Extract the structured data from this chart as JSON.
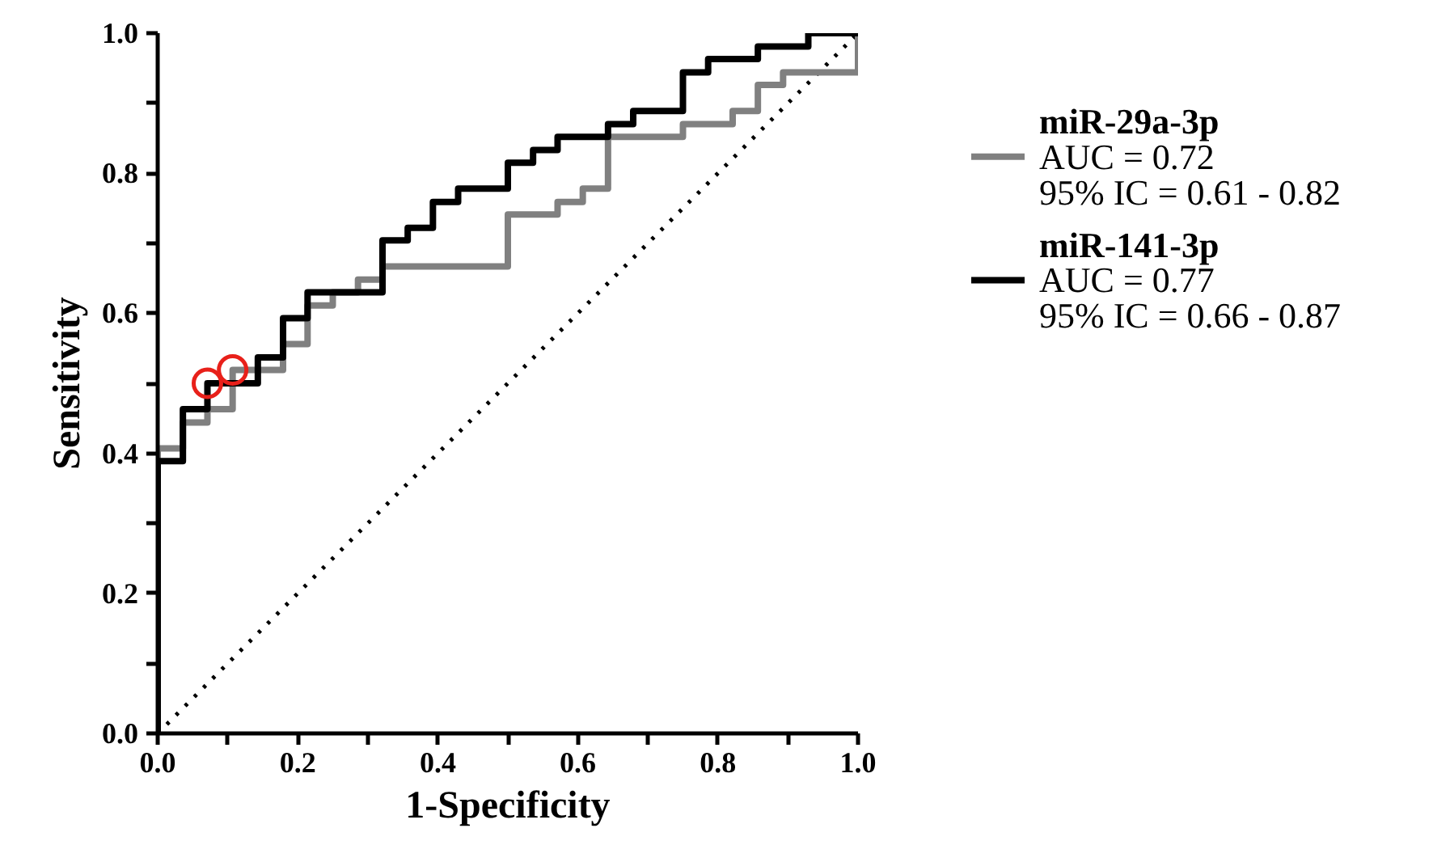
{
  "chart_data": {
    "type": "step",
    "xlabel": "1-Specificity",
    "ylabel": "Sensitivity",
    "xlim": [
      0,
      1
    ],
    "ylim": [
      0,
      1
    ],
    "xticks": [
      {
        "value": 0,
        "label": "0.0"
      },
      {
        "value": 0.1,
        "label": null
      },
      0.2,
      {
        "value": 0.3,
        "label": null
      },
      0.4,
      {
        "value": 0.5,
        "label": null
      },
      0.6,
      {
        "value": 0.7,
        "label": null
      },
      0.8,
      {
        "value": 0.9,
        "label": null
      },
      {
        "value": 1,
        "label": "1.0"
      }
    ],
    "yticks": [
      {
        "value": 0,
        "label": "0.0"
      },
      {
        "value": 0.1,
        "label": null
      },
      0.2,
      {
        "value": 0.3,
        "label": null
      },
      0.4,
      {
        "value": 0.5,
        "label": null
      },
      0.6,
      {
        "value": 0.7,
        "label": null
      },
      0.8,
      {
        "value": 0.9,
        "label": null
      },
      {
        "value": 1,
        "label": "1.0"
      }
    ],
    "grid": false,
    "legend": "right",
    "annotations": [
      "AUC = 0.72",
      "95% IC = 0.61 - 0.82",
      "AUC = 0.77",
      "95% IC = 0.66 - 0.87"
    ],
    "series": [
      {
        "type": "line",
        "line_style": "dotted",
        "color": "#000000",
        "x": [
          0,
          1
        ],
        "values": [
          0,
          1
        ]
      },
      {
        "name": "miR-29a-3p",
        "color": "#808080",
        "x": [
          0,
          0,
          0.036,
          0.071,
          0.107,
          0.179,
          0.214,
          0.25,
          0.286,
          0.321,
          0.5,
          0.571,
          0.607,
          0.643,
          0.75,
          0.821,
          0.857,
          0.893,
          1.0
        ],
        "values": [
          0,
          0.407,
          0.444,
          0.463,
          0.519,
          0.556,
          0.611,
          0.63,
          0.648,
          0.667,
          0.741,
          0.759,
          0.778,
          0.852,
          0.87,
          0.889,
          0.926,
          0.944,
          1.0
        ]
      },
      {
        "name": "miR-141-3p",
        "color": "#000000",
        "x": [
          0,
          0,
          0.036,
          0.071,
          0.143,
          0.179,
          0.214,
          0.321,
          0.357,
          0.393,
          0.429,
          0.5,
          0.536,
          0.571,
          0.643,
          0.679,
          0.75,
          0.786,
          0.857,
          0.929,
          1.0
        ],
        "values": [
          0,
          0.389,
          0.463,
          0.5,
          0.537,
          0.593,
          0.63,
          0.704,
          0.722,
          0.759,
          0.778,
          0.815,
          0.833,
          0.852,
          0.87,
          0.889,
          0.944,
          0.963,
          0.981,
          1.0,
          1.0
        ]
      },
      {
        "type": "scatter",
        "marker": "circle",
        "color": "#e8201a",
        "x": [
          0.071,
          0.107
        ],
        "values": [
          0.5,
          0.519
        ]
      }
    ]
  }
}
